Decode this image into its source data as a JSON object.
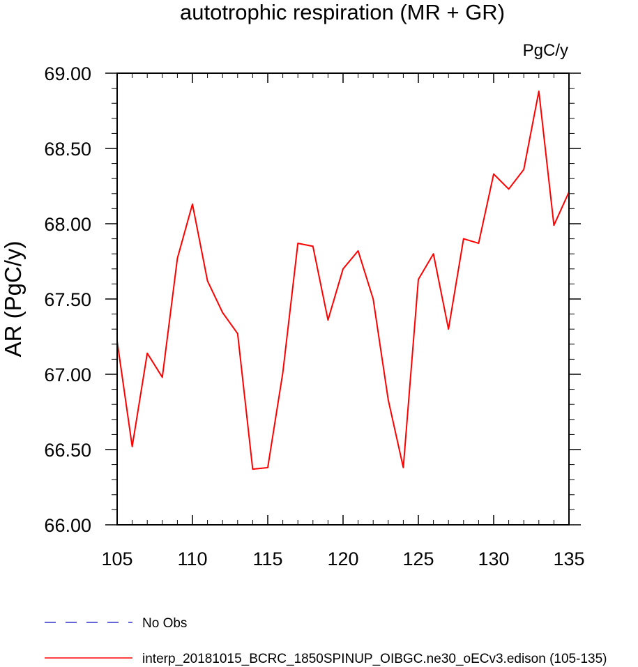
{
  "chart_data": {
    "type": "line",
    "title": "autotrophic respiration (MR + GR)",
    "units_label": "PgC/y",
    "ylabel": "AR  (PgC/y)",
    "xlabel": "",
    "xlim": [
      105,
      135
    ],
    "ylim": [
      66.0,
      69.0
    ],
    "x_ticks": [
      105,
      110,
      115,
      120,
      125,
      130,
      135
    ],
    "x_tick_labels": [
      "105",
      "110",
      "115",
      "120",
      "125",
      "130",
      "135"
    ],
    "y_ticks": [
      66.0,
      66.5,
      67.0,
      67.5,
      68.0,
      68.5,
      69.0
    ],
    "y_tick_labels": [
      "66.00",
      "66.50",
      "67.00",
      "67.50",
      "68.00",
      "68.50",
      "69.00"
    ],
    "grid": false,
    "legend_placement": "bottom-left",
    "series": [
      {
        "name": "interp_20181015_BCRC_1850SPINUP_OIBGC.ne30_oECv3.edison (105-135)",
        "color": "#ff0000",
        "style": "solid",
        "x": [
          105,
          106,
          107,
          108,
          109,
          110,
          111,
          112,
          113,
          114,
          115,
          116,
          117,
          118,
          119,
          120,
          121,
          122,
          123,
          124,
          125,
          126,
          127,
          128,
          129,
          130,
          131,
          132,
          133,
          134,
          135
        ],
        "y": [
          67.22,
          66.52,
          67.14,
          66.98,
          67.77,
          68.13,
          67.62,
          67.41,
          67.27,
          66.37,
          66.38,
          67.01,
          67.87,
          67.85,
          67.36,
          67.7,
          67.82,
          67.5,
          66.83,
          66.38,
          67.63,
          67.8,
          67.3,
          67.9,
          67.87,
          68.33,
          68.23,
          68.36,
          68.88,
          67.99,
          68.21
        ]
      }
    ],
    "legend": [
      {
        "label": "No Obs",
        "color": "#3333cc",
        "style": "dashed"
      },
      {
        "label": "interp_20181015_BCRC_1850SPINUP_OIBGC.ne30_oECv3.edison (105-135)",
        "color": "#ff0000",
        "style": "solid"
      }
    ]
  }
}
